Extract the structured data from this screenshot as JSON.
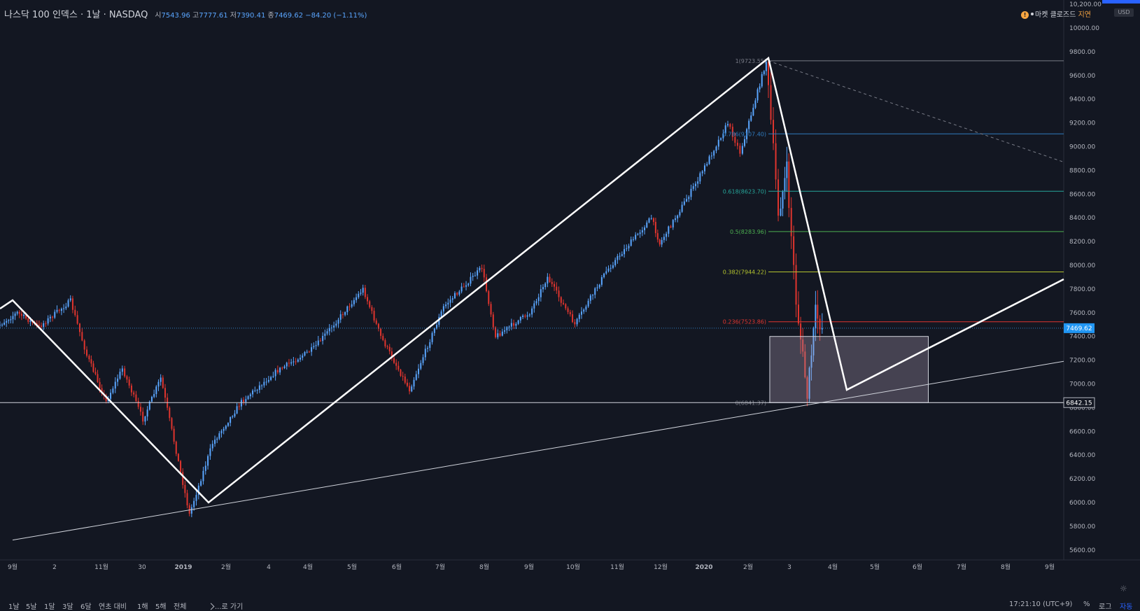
{
  "header": {
    "symbol": "나스닥 100 인덱스 · 1날 · NASDAQ",
    "open_label": "시",
    "open": "7543.96",
    "high_label": "고",
    "high": "7777.61",
    "low_label": "저",
    "low": "7390.41",
    "close_label": "종",
    "close": "7469.62",
    "change": "−84.20 (−1.11%)"
  },
  "market": {
    "warn_icon": "!",
    "status": "마켓 클로즈드",
    "delay": "지연"
  },
  "currency": "USD",
  "bottom": {
    "ranges": [
      "1날",
      "5날",
      "1달",
      "3달",
      "6달",
      "연초 대비",
      "1해",
      "5해",
      "전체"
    ],
    "goto": "...로 가기",
    "clock": "17:21:10 (UTC+9)",
    "percent": "%",
    "log": "로그",
    "auto": "자동"
  },
  "colors": {
    "background": "#131722",
    "up": "#5aa6ff",
    "down": "#e0352e",
    "text": "#b2b5be"
  },
  "chart_data": {
    "type": "candlestick",
    "price_ticks": [
      "10,200.00",
      "10000.00",
      "9800.00",
      "9600.00",
      "9400.00",
      "9200.00",
      "9000.00",
      "8800.00",
      "8600.00",
      "8400.00",
      "8200.00",
      "8000.00",
      "7800.00",
      "7600.00",
      "7400.00",
      "7200.00",
      "7000.00",
      "6800.00",
      "6600.00",
      "6400.00",
      "6200.00",
      "6000.00",
      "5800.00",
      "5600.00"
    ],
    "time_ticks": [
      "9월",
      "2",
      "11월",
      "30",
      "2019",
      "2월",
      "4",
      "4월",
      "5월",
      "6월",
      "7월",
      "8월",
      "9월",
      "10월",
      "11월",
      "12월",
      "2020",
      "2월",
      "3",
      "4월",
      "5월",
      "6월",
      "7월",
      "8월",
      "9월"
    ],
    "current_price": "7469.62",
    "horizontal_price": "6842.15",
    "fib_levels": [
      {
        "label": "1(9723.55)",
        "value": 9723.55,
        "color": "#787b86"
      },
      {
        "label": "0.786(9107.40)",
        "value": 9107.4,
        "color": "#2f7bbf"
      },
      {
        "label": "0.618(8623.70)",
        "value": 8623.7,
        "color": "#26a69a"
      },
      {
        "label": "0.5(8283.96)",
        "value": 8283.96,
        "color": "#4caf50"
      },
      {
        "label": "0.382(7944.22)",
        "value": 7944.22,
        "color": "#b5c52e"
      },
      {
        "label": "0.236(7523.86)",
        "value": 7523.86,
        "color": "#e0352e"
      },
      {
        "label": "0(6841.37)",
        "value": 6841.37,
        "color": "#787b86"
      }
    ],
    "wave_points": [
      {
        "date": "2018-08-15",
        "price": 7720
      },
      {
        "date": "2018-12-26",
        "price": 5990
      },
      {
        "date": "2020-02-19",
        "price": 9740
      },
      {
        "date": "2020-04-06",
        "price": 6950
      },
      {
        "date": "2020-08-31",
        "price": 7870
      }
    ],
    "trendline": [
      {
        "date": "2018-08-15",
        "price": 5660
      },
      {
        "date": "2020-09-15",
        "price": 7190
      }
    ],
    "dashed_line": [
      {
        "date": "2020-02-19",
        "price": 9723
      },
      {
        "date": "2020-09-15",
        "price": 8870
      }
    ],
    "box": {
      "date_from": "2020-02-20",
      "date_to": "2020-06-15",
      "price_from": 6842,
      "price_to": 7400
    },
    "series_anchors": [
      {
        "date": "2018-08-01",
        "price": 7450
      },
      {
        "date": "2018-08-20",
        "price": 7600
      },
      {
        "date": "2018-09-05",
        "price": 7480
      },
      {
        "date": "2018-09-28",
        "price": 7700
      },
      {
        "date": "2018-10-10",
        "price": 7240
      },
      {
        "date": "2018-10-24",
        "price": 6850
      },
      {
        "date": "2018-11-05",
        "price": 7130
      },
      {
        "date": "2018-11-20",
        "price": 6700
      },
      {
        "date": "2018-12-03",
        "price": 7050
      },
      {
        "date": "2018-12-24",
        "price": 5900
      },
      {
        "date": "2019-01-10",
        "price": 6500
      },
      {
        "date": "2019-01-31",
        "price": 6850
      },
      {
        "date": "2019-02-25",
        "price": 7100
      },
      {
        "date": "2019-03-25",
        "price": 7300
      },
      {
        "date": "2019-04-30",
        "price": 7800
      },
      {
        "date": "2019-05-13",
        "price": 7400
      },
      {
        "date": "2019-06-03",
        "price": 6950
      },
      {
        "date": "2019-06-28",
        "price": 7650
      },
      {
        "date": "2019-07-26",
        "price": 7980
      },
      {
        "date": "2019-08-05",
        "price": 7400
      },
      {
        "date": "2019-08-30",
        "price": 7600
      },
      {
        "date": "2019-09-12",
        "price": 7900
      },
      {
        "date": "2019-10-02",
        "price": 7500
      },
      {
        "date": "2019-10-25",
        "price": 7950
      },
      {
        "date": "2019-11-27",
        "price": 8400
      },
      {
        "date": "2019-12-03",
        "price": 8180
      },
      {
        "date": "2019-12-31",
        "price": 8720
      },
      {
        "date": "2020-01-22",
        "price": 9200
      },
      {
        "date": "2020-01-31",
        "price": 8950
      },
      {
        "date": "2020-02-19",
        "price": 9720
      },
      {
        "date": "2020-02-28",
        "price": 8450
      },
      {
        "date": "2020-03-05",
        "price": 8800
      },
      {
        "date": "2020-03-12",
        "price": 7700
      },
      {
        "date": "2020-03-20",
        "price": 6900
      },
      {
        "date": "2020-03-26",
        "price": 7600
      },
      {
        "date": "2020-03-31",
        "price": 7470
      }
    ]
  }
}
